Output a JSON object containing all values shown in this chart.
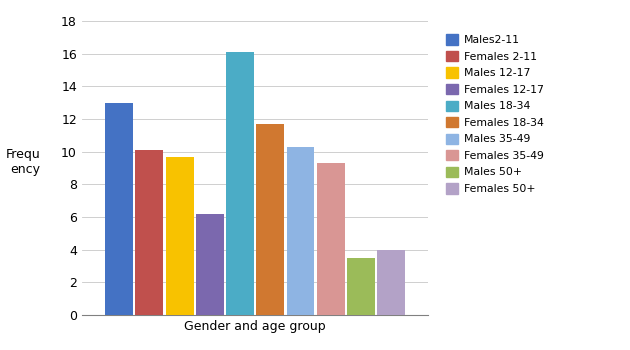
{
  "categories": [
    "Males2-11",
    "Females 2-11",
    "Males 12-17",
    "Females 12-17",
    "Males 18-34",
    "Females 18-34",
    "Males 35-49",
    "Females 35-49",
    "Males 50+",
    "Females 50+"
  ],
  "values": [
    13.0,
    10.1,
    9.7,
    6.2,
    16.1,
    11.7,
    10.3,
    9.3,
    3.5,
    4.0
  ],
  "colors": [
    "#4472C4",
    "#C0504D",
    "#F8C200",
    "#7B68AE",
    "#4BACC6",
    "#D07830",
    "#8EB4E3",
    "#D99694",
    "#9BBB59",
    "#B3A2C7"
  ],
  "xlabel": "Gender and age group",
  "ylabel": "Frequ\nency",
  "ylim": [
    0,
    18
  ],
  "yticks": [
    0,
    2,
    4,
    6,
    8,
    10,
    12,
    14,
    16,
    18
  ],
  "background_color": "#FFFFFF",
  "legend_labels": [
    "Males2-11",
    "Females 2-11",
    "Males 12-17",
    "Females 12-17",
    "Males 18-34",
    "Females 18-34",
    "Males 35-49",
    "Females 35-49",
    "Males 50+",
    "Females 50+"
  ]
}
